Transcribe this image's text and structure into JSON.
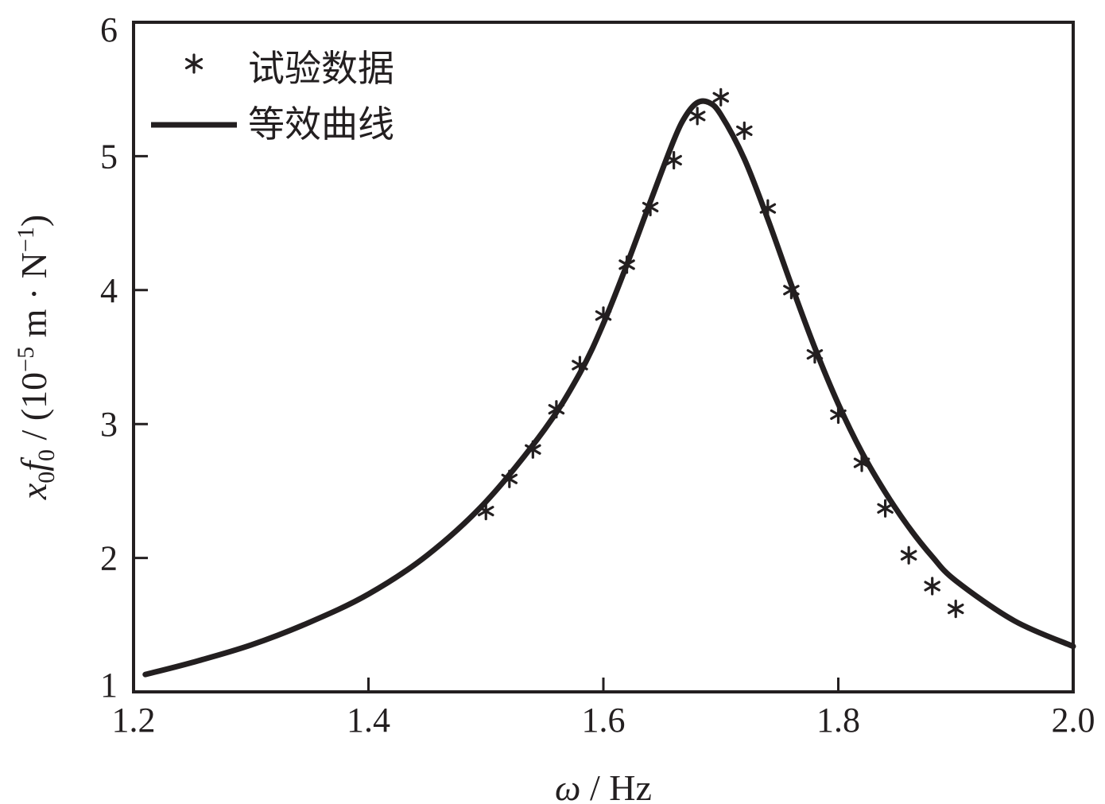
{
  "chart_data": {
    "type": "line",
    "xlabel": "ω / Hz",
    "ylabel": "x0f0 / (10−5 m · N−1)",
    "xlim": [
      1.2,
      2.0
    ],
    "ylim": [
      1,
      6
    ],
    "x_ticks": [
      "1.2",
      "1.4",
      "1.6",
      "1.8",
      "2.0"
    ],
    "y_ticks": [
      "1",
      "2",
      "3",
      "4",
      "5",
      "6"
    ],
    "grid": false,
    "legend_position": "top-left",
    "series": [
      {
        "name": "试验数据",
        "kind": "scatter",
        "marker": "asterisk",
        "x": [
          1.5,
          1.52,
          1.54,
          1.56,
          1.58,
          1.6,
          1.62,
          1.64,
          1.66,
          1.68,
          1.7,
          1.72,
          1.74,
          1.76,
          1.78,
          1.8,
          1.82,
          1.84,
          1.86,
          1.88,
          1.9
        ],
        "y": [
          2.35,
          2.59,
          2.81,
          3.11,
          3.44,
          3.81,
          4.19,
          4.62,
          4.97,
          5.3,
          5.44,
          5.19,
          4.61,
          4.0,
          3.52,
          3.07,
          2.71,
          2.37,
          2.02,
          1.79,
          1.62
        ]
      },
      {
        "name": "等效曲线",
        "kind": "line",
        "x": [
          1.21,
          1.25,
          1.3,
          1.35,
          1.4,
          1.45,
          1.5,
          1.55,
          1.58,
          1.6,
          1.62,
          1.64,
          1.66,
          1.67,
          1.68,
          1.69,
          1.7,
          1.72,
          1.74,
          1.76,
          1.78,
          1.8,
          1.82,
          1.84,
          1.86,
          1.88,
          1.9,
          1.95,
          2.0
        ],
        "y": [
          1.13,
          1.22,
          1.35,
          1.52,
          1.73,
          2.02,
          2.42,
          2.96,
          3.38,
          3.75,
          4.19,
          4.66,
          5.12,
          5.3,
          5.4,
          5.4,
          5.31,
          4.98,
          4.53,
          4.04,
          3.57,
          3.15,
          2.79,
          2.49,
          2.23,
          2.01,
          1.83,
          1.53,
          1.34
        ]
      }
    ]
  }
}
